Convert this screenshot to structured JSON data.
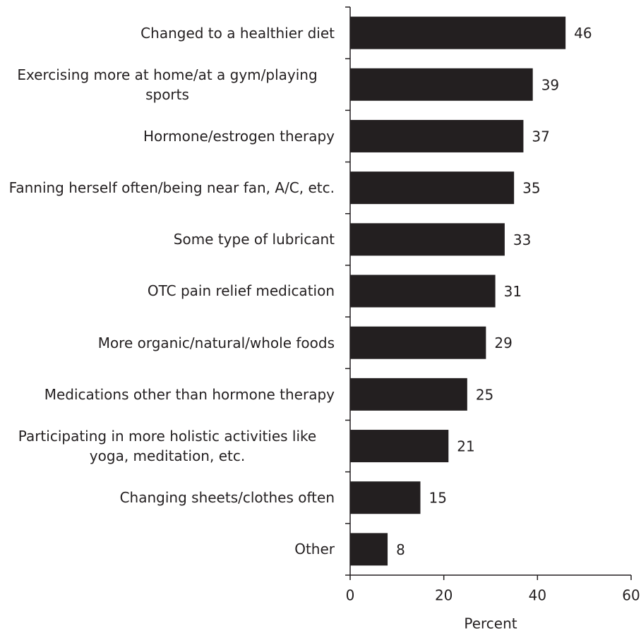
{
  "chart_data": {
    "type": "bar",
    "orientation": "horizontal",
    "x_label": "Percent",
    "categories": [
      "Changed to a healthier diet",
      "Exercising more at home/at a gym/playing sports",
      "Hormone/estrogen therapy",
      "Fanning herself often/being near fan, A/C, etc.",
      "Some type of lubricant",
      "OTC pain relief medication",
      "More organic/natural/whole foods",
      "Medications other than hormone therapy",
      "Participating in more holistic activities like yoga, meditation, etc.",
      "Changing sheets/clothes often",
      "Other"
    ],
    "values": [
      46,
      39,
      37,
      35,
      33,
      31,
      29,
      25,
      21,
      15,
      8
    ],
    "color": "#231f20",
    "xlim": [
      0,
      60
    ],
    "xticks": [
      0,
      20,
      40,
      60
    ],
    "grid": false
  }
}
